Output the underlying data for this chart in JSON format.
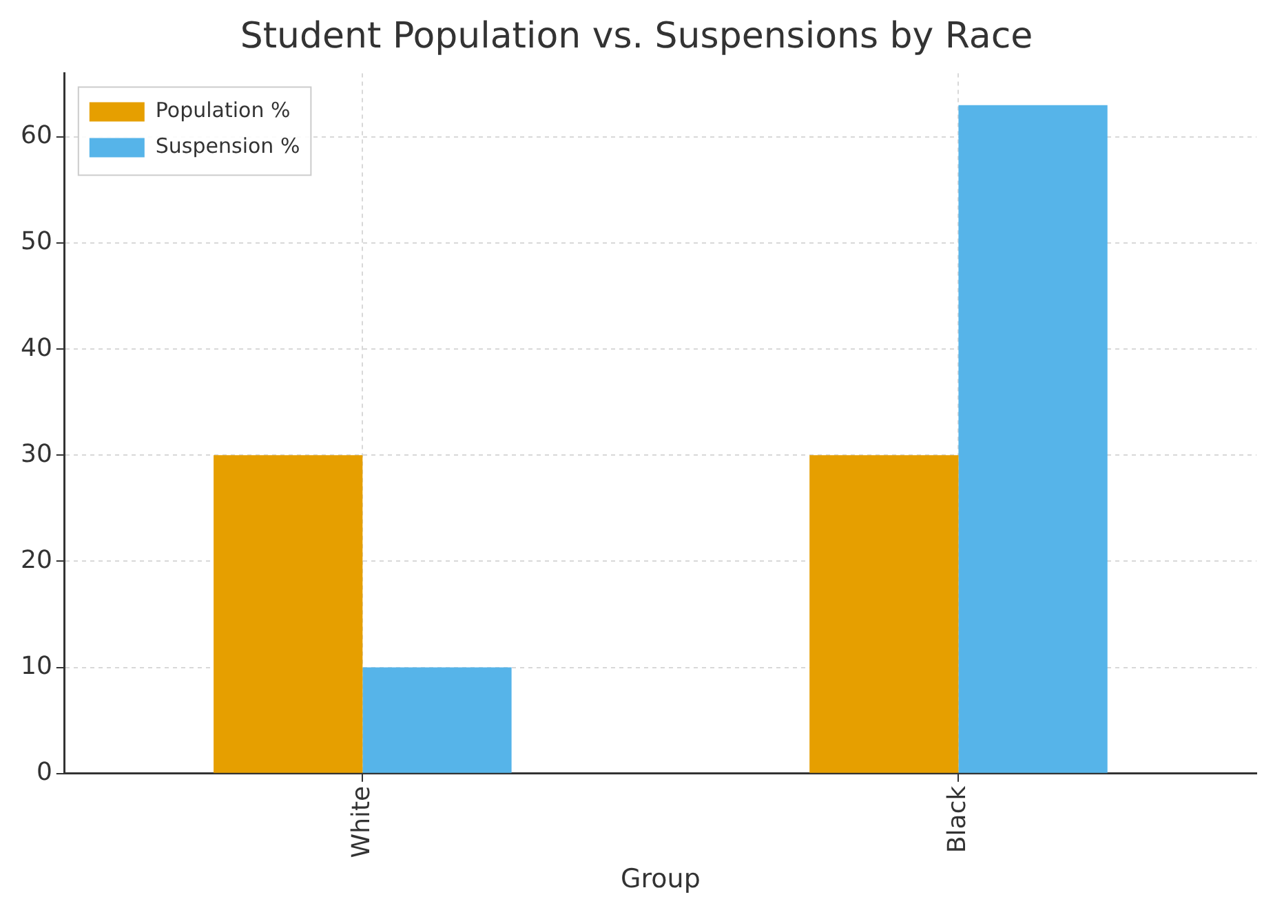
{
  "chart_data": {
    "type": "bar",
    "title": "Student Population vs. Suspensions by Race",
    "xlabel": "Group",
    "categories": [
      "White",
      "Black"
    ],
    "series": [
      {
        "name": "Population %",
        "color": "#e69f00",
        "values": [
          30,
          30
        ]
      },
      {
        "name": "Suspension %",
        "color": "#56b4e9",
        "values": [
          10,
          63
        ]
      }
    ],
    "ylim": [
      0,
      66
    ],
    "yticks": [
      0,
      10,
      20,
      30,
      40,
      50,
      60
    ],
    "grid": true,
    "legend": "top left"
  }
}
